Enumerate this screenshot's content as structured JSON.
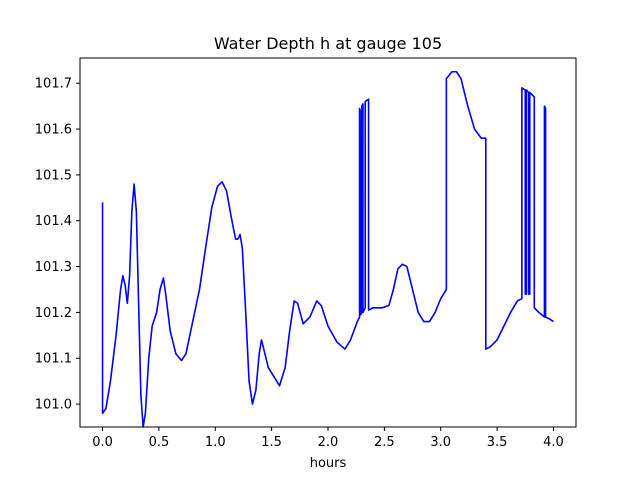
{
  "chart_data": {
    "type": "line",
    "title": "Water Depth h at gauge 105",
    "xlabel": "hours",
    "ylabel": "",
    "xlim": [
      -0.2,
      4.2
    ],
    "ylim": [
      100.95,
      101.755
    ],
    "xticks": [
      {
        "value": 0.0,
        "label": "0.0"
      },
      {
        "value": 0.5,
        "label": "0.5"
      },
      {
        "value": 1.0,
        "label": "1.0"
      },
      {
        "value": 1.5,
        "label": "1.5"
      },
      {
        "value": 2.0,
        "label": "2.0"
      },
      {
        "value": 2.5,
        "label": "2.5"
      },
      {
        "value": 3.0,
        "label": "3.0"
      },
      {
        "value": 3.5,
        "label": "3.5"
      },
      {
        "value": 4.0,
        "label": "4.0"
      }
    ],
    "yticks": [
      {
        "value": 101.0,
        "label": "101.0"
      },
      {
        "value": 101.1,
        "label": "101.1"
      },
      {
        "value": 101.2,
        "label": "101.2"
      },
      {
        "value": 101.3,
        "label": "101.3"
      },
      {
        "value": 101.4,
        "label": "101.4"
      },
      {
        "value": 101.5,
        "label": "101.5"
      },
      {
        "value": 101.6,
        "label": "101.6"
      },
      {
        "value": 101.7,
        "label": "101.7"
      }
    ],
    "grid": false,
    "series": [
      {
        "color": "#0000ff",
        "points": [
          [
            0.0,
            101.44
          ],
          [
            0.0,
            100.98
          ],
          [
            0.03,
            100.99
          ],
          [
            0.07,
            101.05
          ],
          [
            0.12,
            101.15
          ],
          [
            0.16,
            101.25
          ],
          [
            0.18,
            101.28
          ],
          [
            0.2,
            101.26
          ],
          [
            0.22,
            101.22
          ],
          [
            0.24,
            101.28
          ],
          [
            0.26,
            101.42
          ],
          [
            0.28,
            101.48
          ],
          [
            0.3,
            101.42
          ],
          [
            0.32,
            101.22
          ],
          [
            0.34,
            101.02
          ],
          [
            0.36,
            100.95
          ],
          [
            0.38,
            100.98
          ],
          [
            0.41,
            101.1
          ],
          [
            0.44,
            101.17
          ],
          [
            0.48,
            101.2
          ],
          [
            0.51,
            101.25
          ],
          [
            0.54,
            101.275
          ],
          [
            0.56,
            101.24
          ],
          [
            0.6,
            101.16
          ],
          [
            0.65,
            101.11
          ],
          [
            0.7,
            101.095
          ],
          [
            0.74,
            101.11
          ],
          [
            0.8,
            101.18
          ],
          [
            0.86,
            101.25
          ],
          [
            0.92,
            101.35
          ],
          [
            0.97,
            101.43
          ],
          [
            1.02,
            101.475
          ],
          [
            1.06,
            101.485
          ],
          [
            1.1,
            101.465
          ],
          [
            1.14,
            101.41
          ],
          [
            1.18,
            101.36
          ],
          [
            1.2,
            101.36
          ],
          [
            1.22,
            101.37
          ],
          [
            1.24,
            101.34
          ],
          [
            1.27,
            101.2
          ],
          [
            1.3,
            101.05
          ],
          [
            1.33,
            101.0
          ],
          [
            1.36,
            101.03
          ],
          [
            1.39,
            101.11
          ],
          [
            1.41,
            101.14
          ],
          [
            1.43,
            101.12
          ],
          [
            1.47,
            101.08
          ],
          [
            1.52,
            101.06
          ],
          [
            1.57,
            101.04
          ],
          [
            1.62,
            101.08
          ],
          [
            1.66,
            101.16
          ],
          [
            1.7,
            101.225
          ],
          [
            1.73,
            101.22
          ],
          [
            1.78,
            101.175
          ],
          [
            1.84,
            101.19
          ],
          [
            1.9,
            101.225
          ],
          [
            1.94,
            101.215
          ],
          [
            2.0,
            101.17
          ],
          [
            2.08,
            101.135
          ],
          [
            2.15,
            101.12
          ],
          [
            2.2,
            101.14
          ],
          [
            2.26,
            101.18
          ],
          [
            2.28,
            101.19
          ],
          [
            2.28,
            101.645
          ],
          [
            2.285,
            101.64
          ],
          [
            2.29,
            101.195
          ],
          [
            2.3,
            101.2
          ],
          [
            2.3,
            101.65
          ],
          [
            2.31,
            101.655
          ],
          [
            2.31,
            101.2
          ],
          [
            2.33,
            101.21
          ],
          [
            2.33,
            101.66
          ],
          [
            2.36,
            101.665
          ],
          [
            2.36,
            101.205
          ],
          [
            2.4,
            101.21
          ],
          [
            2.48,
            101.21
          ],
          [
            2.54,
            101.215
          ],
          [
            2.58,
            101.25
          ],
          [
            2.62,
            101.295
          ],
          [
            2.66,
            101.305
          ],
          [
            2.7,
            101.3
          ],
          [
            2.74,
            101.26
          ],
          [
            2.8,
            101.2
          ],
          [
            2.85,
            101.18
          ],
          [
            2.9,
            101.18
          ],
          [
            2.95,
            101.2
          ],
          [
            3.0,
            101.23
          ],
          [
            3.05,
            101.25
          ],
          [
            3.05,
            101.71
          ],
          [
            3.1,
            101.725
          ],
          [
            3.14,
            101.725
          ],
          [
            3.18,
            101.71
          ],
          [
            3.24,
            101.65
          ],
          [
            3.3,
            101.6
          ],
          [
            3.36,
            101.58
          ],
          [
            3.4,
            101.58
          ],
          [
            3.4,
            101.12
          ],
          [
            3.44,
            101.125
          ],
          [
            3.5,
            101.14
          ],
          [
            3.56,
            101.17
          ],
          [
            3.62,
            101.2
          ],
          [
            3.68,
            101.225
          ],
          [
            3.72,
            101.23
          ],
          [
            3.72,
            101.69
          ],
          [
            3.75,
            101.685
          ],
          [
            3.75,
            101.24
          ],
          [
            3.76,
            101.24
          ],
          [
            3.76,
            101.685
          ],
          [
            3.78,
            101.68
          ],
          [
            3.78,
            101.24
          ],
          [
            3.79,
            101.24
          ],
          [
            3.79,
            101.68
          ],
          [
            3.83,
            101.67
          ],
          [
            3.83,
            101.21
          ],
          [
            3.87,
            101.2
          ],
          [
            3.92,
            101.19
          ],
          [
            3.92,
            101.65
          ],
          [
            3.93,
            101.645
          ],
          [
            3.93,
            101.19
          ],
          [
            3.97,
            101.185
          ],
          [
            4.0,
            101.18
          ]
        ]
      }
    ]
  }
}
